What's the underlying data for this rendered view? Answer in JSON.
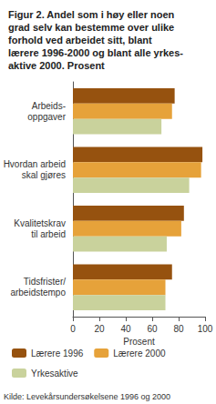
{
  "chart_data": {
    "type": "bar",
    "orientation": "horizontal",
    "title": "Figur 2. Andel som i høy eller noen\ngrad selv kan bestemme over ulike\nforhold ved arbeidet sitt, blant\nlærere 1996-2000 og blant alle yrkes-\naktive 2000. Prosent",
    "categories": [
      "Arbeids-\noppgaver",
      "Hvordan arbeid\nskal gjøres",
      "Kvalitetskrav\ntil arbeid",
      "Tidsfrister/\narbeidstempo"
    ],
    "series": [
      {
        "name": "Lærere 1996",
        "color": "#96520f",
        "values": [
          77,
          98,
          84,
          75
        ]
      },
      {
        "name": "Lærere 2000",
        "color": "#e6a23a",
        "values": [
          75,
          97,
          82,
          70
        ]
      },
      {
        "name": "Yrkesaktive",
        "color": "#c9d29c",
        "values": [
          67,
          88,
          71,
          70
        ]
      }
    ],
    "xlabel": "Prosent",
    "xlim": [
      0,
      100
    ],
    "xticks": [
      0,
      20,
      40,
      60,
      80,
      100
    ],
    "grid": false,
    "legend": "bottom",
    "annotations": [
      "Kilde: Levekårsundersøkelsene 1996 og 2000"
    ]
  }
}
